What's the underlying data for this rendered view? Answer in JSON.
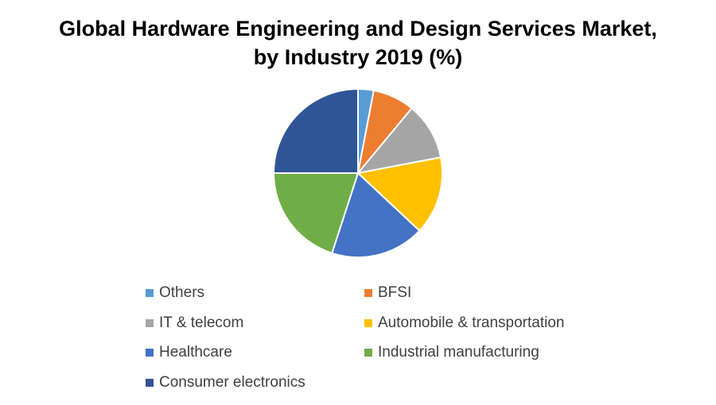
{
  "chart_data": {
    "type": "pie",
    "title": "Global Hardware Engineering and Design Services Market, by Industry 2019 (%)",
    "title_lines": [
      "Global Hardware Engineering and Design Services Market,",
      "by Industry 2019 (%)"
    ],
    "legend_position": "bottom",
    "categories": [
      "Others",
      "BFSI",
      "IT & telecom",
      "Automobile & transportation",
      "Healthcare",
      "Industrial manufacturing",
      "Consumer electronics"
    ],
    "values": [
      3,
      8,
      11,
      15,
      18,
      20,
      25
    ],
    "colors": [
      "#5B9BD5",
      "#ED7D31",
      "#A5A5A5",
      "#FFC000",
      "#4472C4",
      "#70AD47",
      "#2F5597"
    ]
  }
}
